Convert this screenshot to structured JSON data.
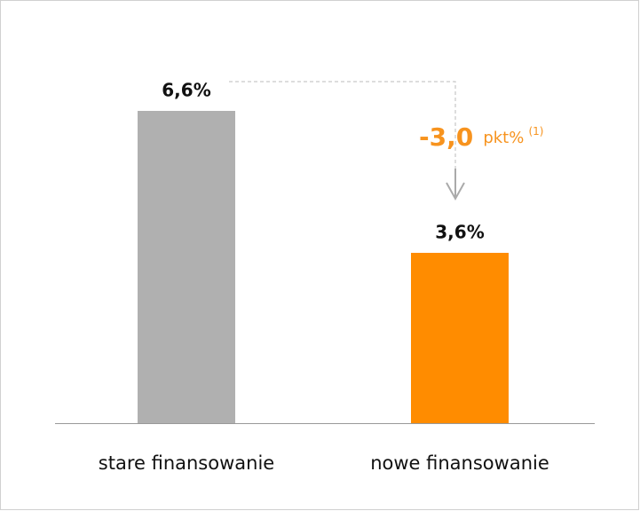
{
  "chart_data": {
    "type": "bar",
    "categories": [
      "stare finansowanie",
      "nowe finansowanie"
    ],
    "values": [
      6.6,
      3.6
    ],
    "value_labels": [
      "6,6%",
      "3,6%"
    ],
    "colors": [
      "#b0b0b0",
      "#ff8c00"
    ],
    "annotation": {
      "value": "-3,0",
      "unit": "pkt%",
      "note": "(1)",
      "color": "#f7931e"
    }
  }
}
